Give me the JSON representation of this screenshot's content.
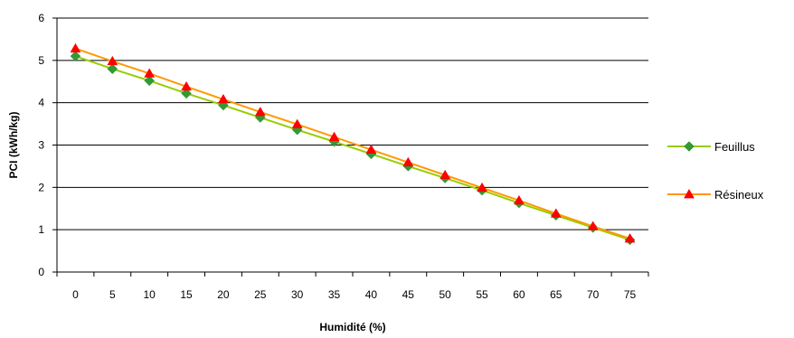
{
  "chart_data": {
    "type": "line",
    "xlabel": "Humidité (%)",
    "ylabel": "PCI (kWh/kg)",
    "x": [
      0,
      5,
      10,
      15,
      20,
      25,
      30,
      35,
      40,
      45,
      50,
      55,
      60,
      65,
      70,
      75
    ],
    "ylim": [
      0,
      6
    ],
    "yticks": [
      0,
      1,
      2,
      3,
      4,
      5,
      6
    ],
    "grid": "horizontal",
    "legend_position": "right",
    "series": [
      {
        "name": "Feuillus",
        "line_color": "#99CC00",
        "marker_color": "#339933",
        "marker": "diamond",
        "values": [
          5.1,
          4.8,
          4.52,
          4.22,
          3.94,
          3.65,
          3.36,
          3.08,
          2.79,
          2.5,
          2.22,
          1.93,
          1.63,
          1.34,
          1.05,
          0.76
        ]
      },
      {
        "name": "Résineux",
        "line_color": "#FF9900",
        "marker_color": "#FF0000",
        "marker": "triangle",
        "values": [
          5.28,
          4.98,
          4.69,
          4.38,
          4.08,
          3.78,
          3.49,
          3.19,
          2.89,
          2.59,
          2.29,
          1.99,
          1.69,
          1.38,
          1.08,
          0.79
        ]
      }
    ]
  }
}
